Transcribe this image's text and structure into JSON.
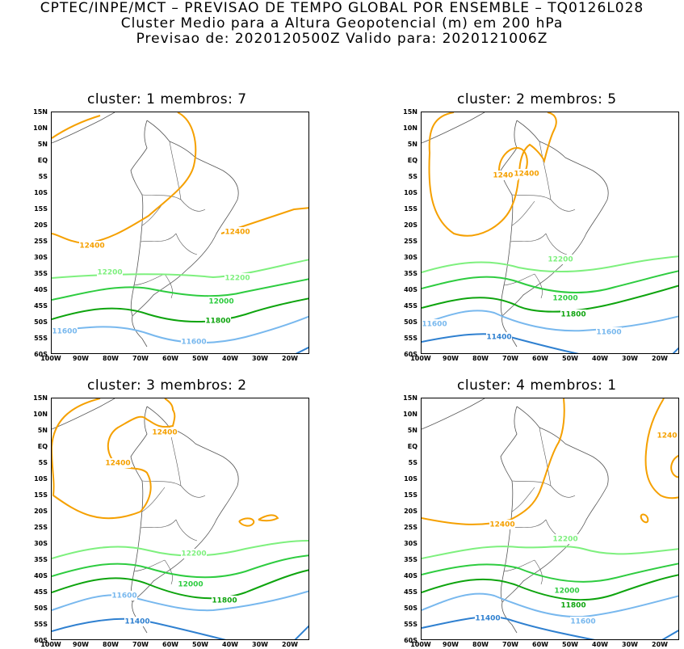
{
  "header": {
    "line1": "CPTEC/INPE/MCT – PREVISAO DE TEMPO GLOBAL POR ENSEMBLE – TQ0126L028",
    "line2": "Cluster Medio para a Altura Geopotencial (m) em 200 hPa",
    "line3": "Previsao de: 2020120500Z    Valido para: 2020121006Z"
  },
  "axes": {
    "y_labels": [
      "15N",
      "10N",
      "5N",
      "EQ",
      "5S",
      "10S",
      "15S",
      "20S",
      "25S",
      "30S",
      "35S",
      "40S",
      "45S",
      "50S",
      "55S",
      "60S"
    ],
    "x_labels": [
      "100W",
      "90W",
      "80W",
      "70W",
      "60W",
      "50W",
      "40W",
      "30W",
      "20W"
    ]
  },
  "colors": {
    "c12400": "#f5a000",
    "c12200": "#7ef07e",
    "c12000": "#2ecc40",
    "c11800": "#0ea40e",
    "c11600": "#78b8ee",
    "c11400": "#2f80d0",
    "coast": "#555555"
  },
  "panels": [
    {
      "title": "cluster: 1   membros: 7",
      "labels": [
        "12400",
        "12400",
        "12200",
        "12200",
        "12000",
        "11800",
        "11600",
        "11600"
      ]
    },
    {
      "title": "cluster: 2   membros: 5",
      "labels": [
        "12400",
        "12400",
        "12200",
        "12000",
        "11800",
        "11600",
        "11600",
        "11400"
      ]
    },
    {
      "title": "cluster: 3   membros: 2",
      "labels": [
        "12400",
        "12400",
        "12200",
        "12000",
        "11800",
        "11600",
        "11400"
      ]
    },
    {
      "title": "cluster: 4   membros: 1",
      "labels": [
        "1240",
        "12400",
        "12200",
        "12000",
        "11800",
        "11600",
        "11400"
      ]
    }
  ]
}
